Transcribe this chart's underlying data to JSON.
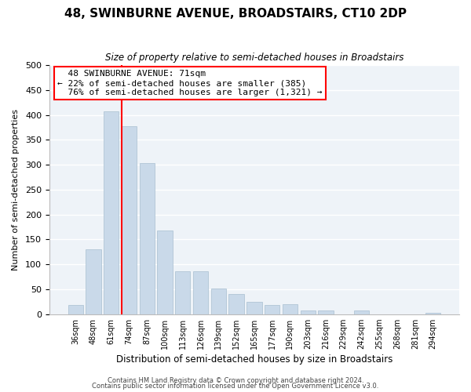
{
  "title": "48, SWINBURNE AVENUE, BROADSTAIRS, CT10 2DP",
  "subtitle": "Size of property relative to semi-detached houses in Broadstairs",
  "xlabel": "Distribution of semi-detached houses by size in Broadstairs",
  "ylabel": "Number of semi-detached properties",
  "bar_color": "#c9d9e9",
  "bar_edge_color": "#a8bfd0",
  "categories": [
    "36sqm",
    "48sqm",
    "61sqm",
    "74sqm",
    "87sqm",
    "100sqm",
    "113sqm",
    "126sqm",
    "139sqm",
    "152sqm",
    "165sqm",
    "177sqm",
    "190sqm",
    "203sqm",
    "216sqm",
    "229sqm",
    "242sqm",
    "255sqm",
    "268sqm",
    "281sqm",
    "294sqm"
  ],
  "values": [
    18,
    130,
    408,
    378,
    303,
    168,
    86,
    86,
    52,
    41,
    25,
    18,
    20,
    8,
    8,
    0,
    8,
    0,
    0,
    0,
    2
  ],
  "ylim": [
    0,
    500
  ],
  "yticks": [
    0,
    50,
    100,
    150,
    200,
    250,
    300,
    350,
    400,
    450,
    500
  ],
  "property_label": "48 SWINBURNE AVENUE: 71sqm",
  "pct_smaller": 22,
  "count_smaller": 385,
  "pct_larger": 76,
  "count_larger": 1321,
  "vline_x_index": 2.57,
  "footer_line1": "Contains HM Land Registry data © Crown copyright and database right 2024.",
  "footer_line2": "Contains public sector information licensed under the Open Government Licence v3.0.",
  "background_color": "#ffffff",
  "plot_bg_color": "#eef3f8",
  "grid_color": "#ffffff"
}
